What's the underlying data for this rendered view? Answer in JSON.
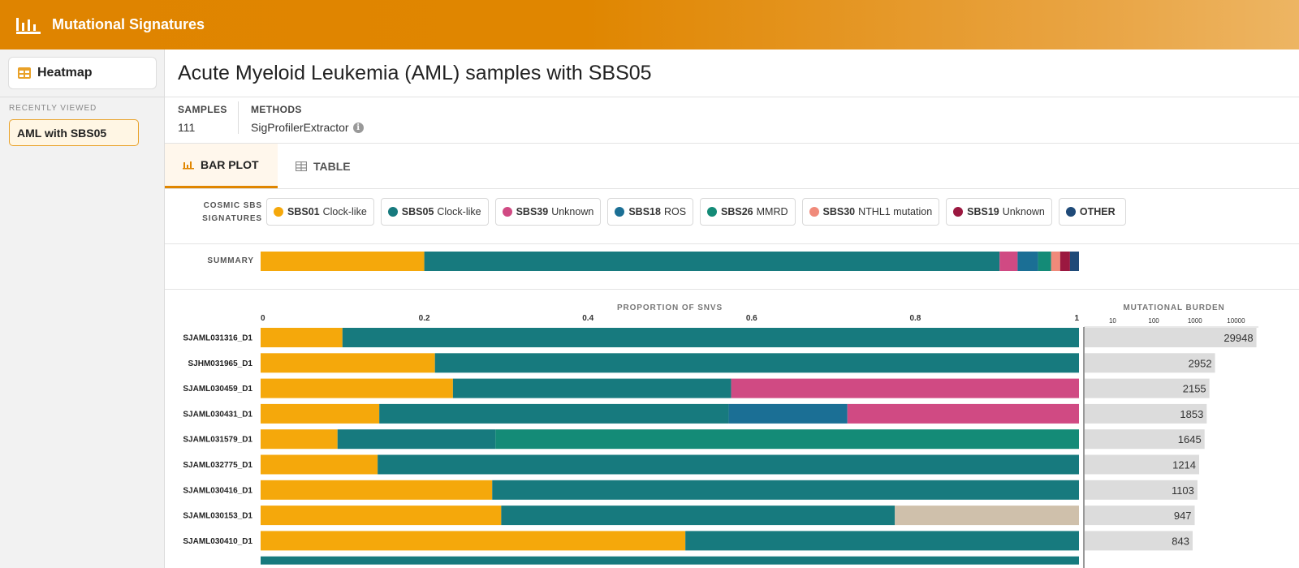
{
  "app": {
    "title": "Mutational Signatures"
  },
  "sidebar": {
    "heatmap_label": "Heatmap",
    "recent_label": "RECENTLY VIEWED",
    "recent_items": [
      "AML with SBS05"
    ]
  },
  "page": {
    "title": "Acute Myeloid Leukemia (AML) samples with SBS05",
    "samples_label": "SAMPLES",
    "samples_value": "111",
    "methods_label": "METHODS",
    "methods_value": "SigProfilerExtractor"
  },
  "tabs": [
    {
      "label": "BAR PLOT",
      "active": true
    },
    {
      "label": "TABLE",
      "active": false
    }
  ],
  "legend": {
    "title_line1": "COSMIC SBS",
    "title_line2": "SIGNATURES",
    "items": [
      {
        "code": "SBS01",
        "desc": "Clock-like",
        "color": "#f5a80b"
      },
      {
        "code": "SBS05",
        "desc": "Clock-like",
        "color": "#177a7e"
      },
      {
        "code": "SBS39",
        "desc": "Unknown",
        "color": "#d04a83"
      },
      {
        "code": "SBS18",
        "desc": "ROS",
        "color": "#1b6f95"
      },
      {
        "code": "SBS26",
        "desc": "MMRD",
        "color": "#148b77"
      },
      {
        "code": "SBS30",
        "desc": "NTHL1 mutation",
        "color": "#f08a7a"
      },
      {
        "code": "SBS19",
        "desc": "Unknown",
        "color": "#9b1840"
      },
      {
        "code": "OTHER",
        "desc": "",
        "color": "#1f4a78"
      }
    ]
  },
  "summary_label": "SUMMARY",
  "colors": {
    "unassigned": "#cfc0ab",
    "burden_bar": "#dcdcdc"
  },
  "chart_data": {
    "type": "bar",
    "orientation": "horizontal-stacked",
    "x_title": "PROPORTION OF SNVS",
    "x_ticks": [
      "0",
      "0.2",
      "0.4",
      "0.6",
      "0.8",
      "1"
    ],
    "xlim": [
      0,
      1
    ],
    "summary": [
      {
        "signature": "SBS01",
        "value": 0.2
      },
      {
        "signature": "SBS05",
        "value": 0.703
      },
      {
        "signature": "SBS39",
        "value": 0.022
      },
      {
        "signature": "SBS18",
        "value": 0.025
      },
      {
        "signature": "SBS26",
        "value": 0.016
      },
      {
        "signature": "SBS30",
        "value": 0.011
      },
      {
        "signature": "SBS19",
        "value": 0.012
      },
      {
        "signature": "OTHER",
        "value": 0.011
      }
    ],
    "samples": [
      {
        "name": "SJAML031316_D1",
        "burden": "29948",
        "segments": [
          {
            "signature": "SBS01",
            "value": 0.1
          },
          {
            "signature": "SBS05",
            "value": 0.9
          }
        ]
      },
      {
        "name": "SJHM031965_D1",
        "burden": "2952",
        "segments": [
          {
            "signature": "SBS01",
            "value": 0.213
          },
          {
            "signature": "SBS05",
            "value": 0.787
          }
        ]
      },
      {
        "name": "SJAML030459_D1",
        "burden": "2155",
        "segments": [
          {
            "signature": "SBS01",
            "value": 0.235
          },
          {
            "signature": "SBS05",
            "value": 0.34
          },
          {
            "signature": "SBS39",
            "value": 0.425
          }
        ]
      },
      {
        "name": "SJAML030431_D1",
        "burden": "1853",
        "segments": [
          {
            "signature": "SBS01",
            "value": 0.145
          },
          {
            "signature": "SBS05",
            "value": 0.427
          },
          {
            "signature": "SBS18",
            "value": 0.145
          },
          {
            "signature": "SBS39",
            "value": 0.283
          }
        ]
      },
      {
        "name": "SJAML031579_D1",
        "burden": "1645",
        "segments": [
          {
            "signature": "SBS01",
            "value": 0.094
          },
          {
            "signature": "SBS05",
            "value": 0.193
          },
          {
            "signature": "SBS26",
            "value": 0.713
          }
        ]
      },
      {
        "name": "SJAML032775_D1",
        "burden": "1214",
        "segments": [
          {
            "signature": "SBS01",
            "value": 0.143
          },
          {
            "signature": "SBS05",
            "value": 0.857
          }
        ]
      },
      {
        "name": "SJAML030416_D1",
        "burden": "1103",
        "segments": [
          {
            "signature": "SBS01",
            "value": 0.283
          },
          {
            "signature": "SBS05",
            "value": 0.717
          }
        ]
      },
      {
        "name": "SJAML030153_D1",
        "burden": "947",
        "segments": [
          {
            "signature": "SBS01",
            "value": 0.294
          },
          {
            "signature": "SBS05",
            "value": 0.481
          },
          {
            "signature": "UNASSIGNED",
            "value": 0.225
          }
        ]
      },
      {
        "name": "SJAML030410_D1",
        "burden": "843",
        "segments": [
          {
            "signature": "SBS01",
            "value": 0.519
          },
          {
            "signature": "SBS05",
            "value": 0.481
          }
        ]
      }
    ],
    "burden_title": "MUTATIONAL BURDEN",
    "burden_scale": "log",
    "burden_ticks": [
      "10",
      "100",
      "1000",
      "10000"
    ],
    "burden_range": [
      2,
      35000
    ]
  }
}
